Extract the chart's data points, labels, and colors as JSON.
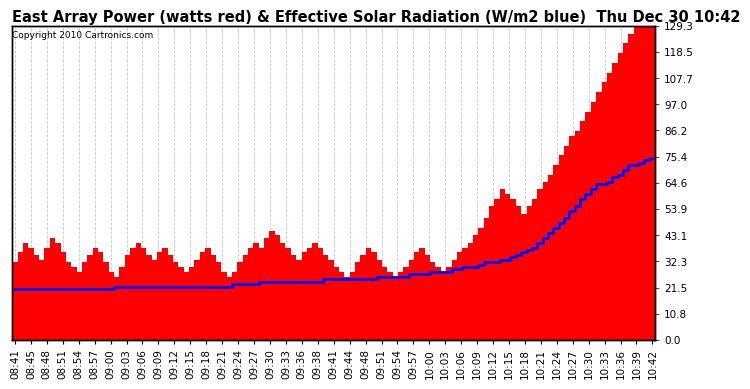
{
  "title": "East Array Power (watts red) & Effective Solar Radiation (W/m2 blue)  Thu Dec 30 10:42",
  "copyright": "Copyright 2010 Cartronics.com",
  "yticks": [
    0.0,
    10.8,
    21.5,
    32.3,
    43.1,
    53.9,
    64.6,
    75.4,
    86.2,
    97.0,
    107.7,
    118.5,
    129.3
  ],
  "ymax": 129.3,
  "ymin": 0.0,
  "xtick_labels": [
    "08:41",
    "08:45",
    "08:48",
    "08:51",
    "08:54",
    "08:57",
    "09:00",
    "09:03",
    "09:06",
    "09:09",
    "09:12",
    "09:15",
    "09:18",
    "09:21",
    "09:24",
    "09:27",
    "09:30",
    "09:33",
    "09:36",
    "09:38",
    "09:41",
    "09:44",
    "09:48",
    "09:51",
    "09:54",
    "09:57",
    "10:00",
    "10:03",
    "10:06",
    "10:09",
    "10:12",
    "10:15",
    "10:18",
    "10:21",
    "10:24",
    "10:27",
    "10:30",
    "10:33",
    "10:36",
    "10:39",
    "10:42"
  ],
  "bar_color": "#FF0000",
  "line_color": "#0000FF",
  "bg_color": "#FFFFFF",
  "grid_color": "#C8C8C8",
  "title_fontsize": 10.5,
  "tick_fontsize": 7.5,
  "red_data": [
    32,
    36,
    40,
    38,
    35,
    33,
    38,
    42,
    40,
    36,
    32,
    30,
    28,
    32,
    35,
    38,
    36,
    32,
    28,
    26,
    30,
    35,
    38,
    40,
    38,
    35,
    33,
    36,
    38,
    35,
    32,
    30,
    28,
    30,
    33,
    36,
    38,
    35,
    32,
    28,
    26,
    28,
    32,
    35,
    38,
    40,
    38,
    42,
    45,
    43,
    40,
    38,
    35,
    33,
    36,
    38,
    40,
    38,
    35,
    33,
    30,
    28,
    26,
    28,
    32,
    35,
    38,
    36,
    33,
    30,
    28,
    26,
    28,
    30,
    33,
    36,
    38,
    35,
    32,
    30,
    28,
    30,
    33,
    36,
    38,
    40,
    43,
    46,
    50,
    55,
    58,
    62,
    60,
    58,
    55,
    52,
    55,
    58,
    62,
    65,
    68,
    72,
    76,
    80,
    84,
    86,
    90,
    94,
    98,
    102,
    106,
    110,
    114,
    118,
    122,
    126,
    129,
    129,
    129,
    129
  ],
  "blue_data": [
    21,
    21,
    21,
    21,
    21,
    21,
    21,
    21,
    21,
    21,
    21,
    21,
    21,
    21,
    21,
    21,
    21,
    21,
    21,
    22,
    22,
    22,
    22,
    22,
    22,
    22,
    22,
    22,
    22,
    22,
    22,
    22,
    22,
    22,
    22,
    22,
    22,
    22,
    22,
    22,
    22,
    23,
    23,
    23,
    23,
    23,
    24,
    24,
    24,
    24,
    24,
    24,
    24,
    24,
    24,
    24,
    24,
    24,
    25,
    25,
    25,
    25,
    25,
    25,
    25,
    25,
    25,
    25,
    26,
    26,
    26,
    26,
    26,
    26,
    27,
    27,
    27,
    27,
    28,
    28,
    28,
    28,
    29,
    29,
    30,
    30,
    30,
    31,
    32,
    32,
    32,
    33,
    33,
    34,
    35,
    36,
    37,
    38,
    40,
    42,
    44,
    46,
    48,
    50,
    53,
    55,
    58,
    60,
    62,
    64,
    64,
    65,
    67,
    68,
    70,
    72,
    72,
    73,
    74,
    75
  ]
}
